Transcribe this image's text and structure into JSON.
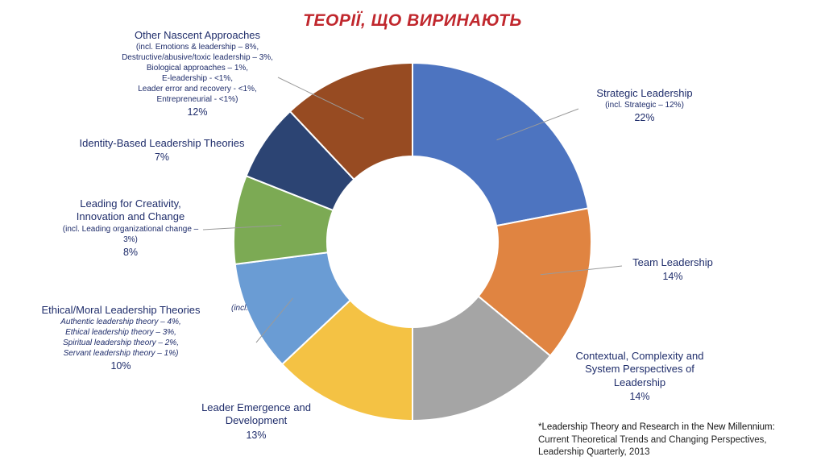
{
  "title": "ТЕОРІЇ, ЩО ВИРИНАЮТЬ",
  "colors": {
    "strategic": "#4d74c0",
    "team": "#e08441",
    "contextual": "#a5a5a5",
    "emergence": "#f4c244",
    "ethical": "#6a9cd4",
    "creativity": "#7caa54",
    "identity": "#2c4473",
    "nascent": "#974b22"
  },
  "chart_data": {
    "type": "pie",
    "style": "donut",
    "slices": [
      {
        "key": "strategic",
        "label": "Strategic Leadership",
        "value": 22
      },
      {
        "key": "team",
        "label": "Team Leadership",
        "value": 14
      },
      {
        "key": "contextual",
        "label": "Contextual, Complexity and System Perspectives of Leadership",
        "value": 14
      },
      {
        "key": "emergence",
        "label": "Leader Emergence and Development",
        "value": 13
      },
      {
        "key": "ethical",
        "label": "Ethical/Moral Leadership Theories",
        "value": 10
      },
      {
        "key": "creativity",
        "label": "Leading for Creativity, Innovation and Change",
        "value": 8
      },
      {
        "key": "identity",
        "label": "Identity-Based Leadership Theories",
        "value": 7
      },
      {
        "key": "nascent",
        "label": "Other Nascent Approaches",
        "value": 12
      }
    ]
  },
  "labels": {
    "strategic": {
      "main": "Strategic Leadership",
      "sub": [
        "(incl. Strategic – 12%)"
      ],
      "pct": "22%"
    },
    "team": {
      "main": "Team Leadership",
      "sub": [],
      "pct": "14%"
    },
    "contextual": {
      "main": "Contextual, Complexity and System Perspectives of Leadership",
      "sub": [],
      "pct": "14%"
    },
    "emergence": {
      "main": "Leader Emergence and Development",
      "sub": [],
      "pct": "13%"
    },
    "ethical": {
      "main": "Ethical/Moral Leadership Theories",
      "sub": [
        "Authentic leadership theory – 4%,",
        "Ethical leadership theory – 3%,",
        "Spiritual leadership theory – 2%,",
        "Servant leadership theory – 1%)"
      ],
      "pct": "10%"
    },
    "creativity": {
      "main": "Leading for Creativity, Innovation and Change",
      "sub": [
        "(incl. Leading organizational change – 3%)"
      ],
      "pct": "8%"
    },
    "identity": {
      "main": "Identity-Based Leadership Theories",
      "sub": [],
      "pct": "7%"
    },
    "nascent": {
      "main": "Other Nascent Approaches",
      "sub": [
        "(incl. Emotions & leadership – 8%,",
        "Destructive/abusive/toxic leadership – 3%,",
        "Biological approaches – 1%,",
        "E-leadership - <1%,",
        "Leader error and recovery - <1%,",
        "Entrepreneurial - <1%)"
      ],
      "pct": "12%"
    }
  },
  "overlay_text": "(incl.",
  "source": {
    "line1": "*Leadership Theory and Research in the New Millennium:",
    "line2": "Current Theoretical Trends and Changing Perspectives,",
    "line3": "Leadership Quarterly, 2013"
  }
}
